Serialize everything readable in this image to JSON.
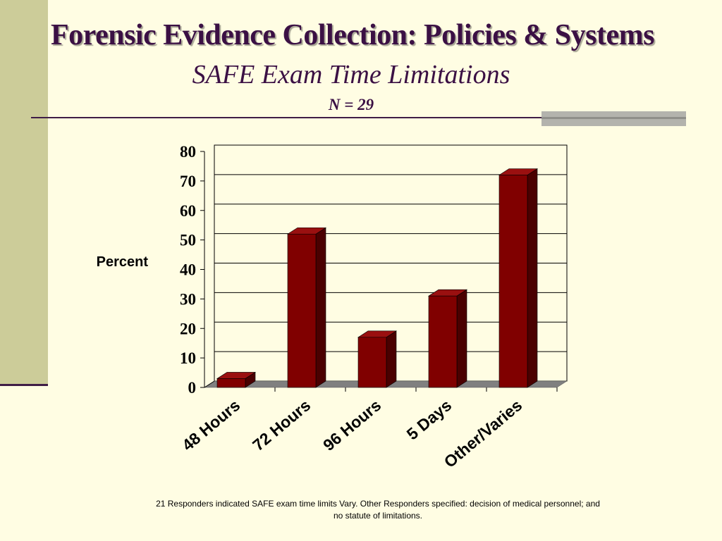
{
  "slide": {
    "title": "Forensic Evidence Collection: Policies & Systems",
    "subtitle": "SAFE Exam Time Limitations",
    "n_label": "N = 29",
    "footnote": "21 Responders indicated SAFE exam time limits Vary.  Other Responders specified: decision of medical personnel; and no statute of limitations."
  },
  "colors": {
    "background": "#fffde3",
    "bar_front": "#800000",
    "bar_side": "#4a0000",
    "bar_top": "#9a1010",
    "floor": "#808080",
    "title": "#3b1044"
  },
  "chart_data": {
    "type": "bar",
    "categories": [
      "48 Hours",
      "72 Hours",
      "96 Hours",
      "5 Days",
      "Other/Varies"
    ],
    "values": [
      3,
      52,
      17,
      31,
      72
    ],
    "title": "",
    "xlabel": "",
    "ylabel": "Percent",
    "ylim": [
      0,
      80
    ],
    "yticks": [
      "0",
      "10",
      "20",
      "30",
      "40",
      "50",
      "60",
      "70",
      "80"
    ],
    "grid": true,
    "legend": "none",
    "style": "3d-column"
  }
}
